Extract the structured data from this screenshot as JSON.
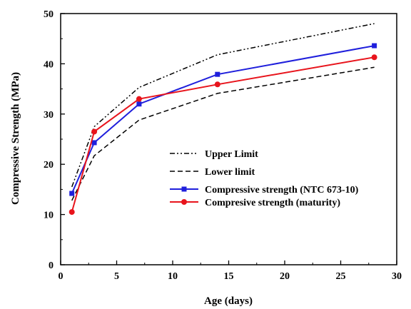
{
  "chart_data": {
    "type": "line",
    "xlabel": "Age (days)",
    "ylabel": "Compressive Strength (MPa)",
    "xlim": [
      0,
      30
    ],
    "ylim": [
      0,
      50
    ],
    "xticks": [
      0,
      5,
      10,
      15,
      20,
      25,
      30
    ],
    "yticks": [
      0,
      10,
      20,
      30,
      40,
      50
    ],
    "grid": false,
    "legend_position": "center-right",
    "series": [
      {
        "name": "Upper Limit",
        "style": "dash-dot-dot",
        "color": "#000000",
        "marker": "none",
        "x": [
          1,
          3,
          7,
          14,
          28
        ],
        "y": [
          15.5,
          27.5,
          35.3,
          41.8,
          48.0
        ]
      },
      {
        "name": "Lower limit",
        "style": "dashed",
        "color": "#000000",
        "marker": "none",
        "x": [
          1,
          3,
          7,
          14,
          28
        ],
        "y": [
          12.8,
          21.7,
          28.8,
          34.1,
          39.3
        ]
      },
      {
        "name": "Compressive strength (NTC 673-10)",
        "style": "solid",
        "color": "#1f1fdc",
        "marker": "square",
        "x": [
          1,
          3,
          7,
          14,
          28
        ],
        "y": [
          14.2,
          24.3,
          32.0,
          37.9,
          43.6
        ]
      },
      {
        "name": "Compresive strength (maturity)",
        "style": "solid",
        "color": "#e8141c",
        "marker": "circle",
        "x": [
          1,
          3,
          7,
          14,
          28
        ],
        "y": [
          10.5,
          26.5,
          33.0,
          35.9,
          41.3
        ]
      }
    ]
  }
}
